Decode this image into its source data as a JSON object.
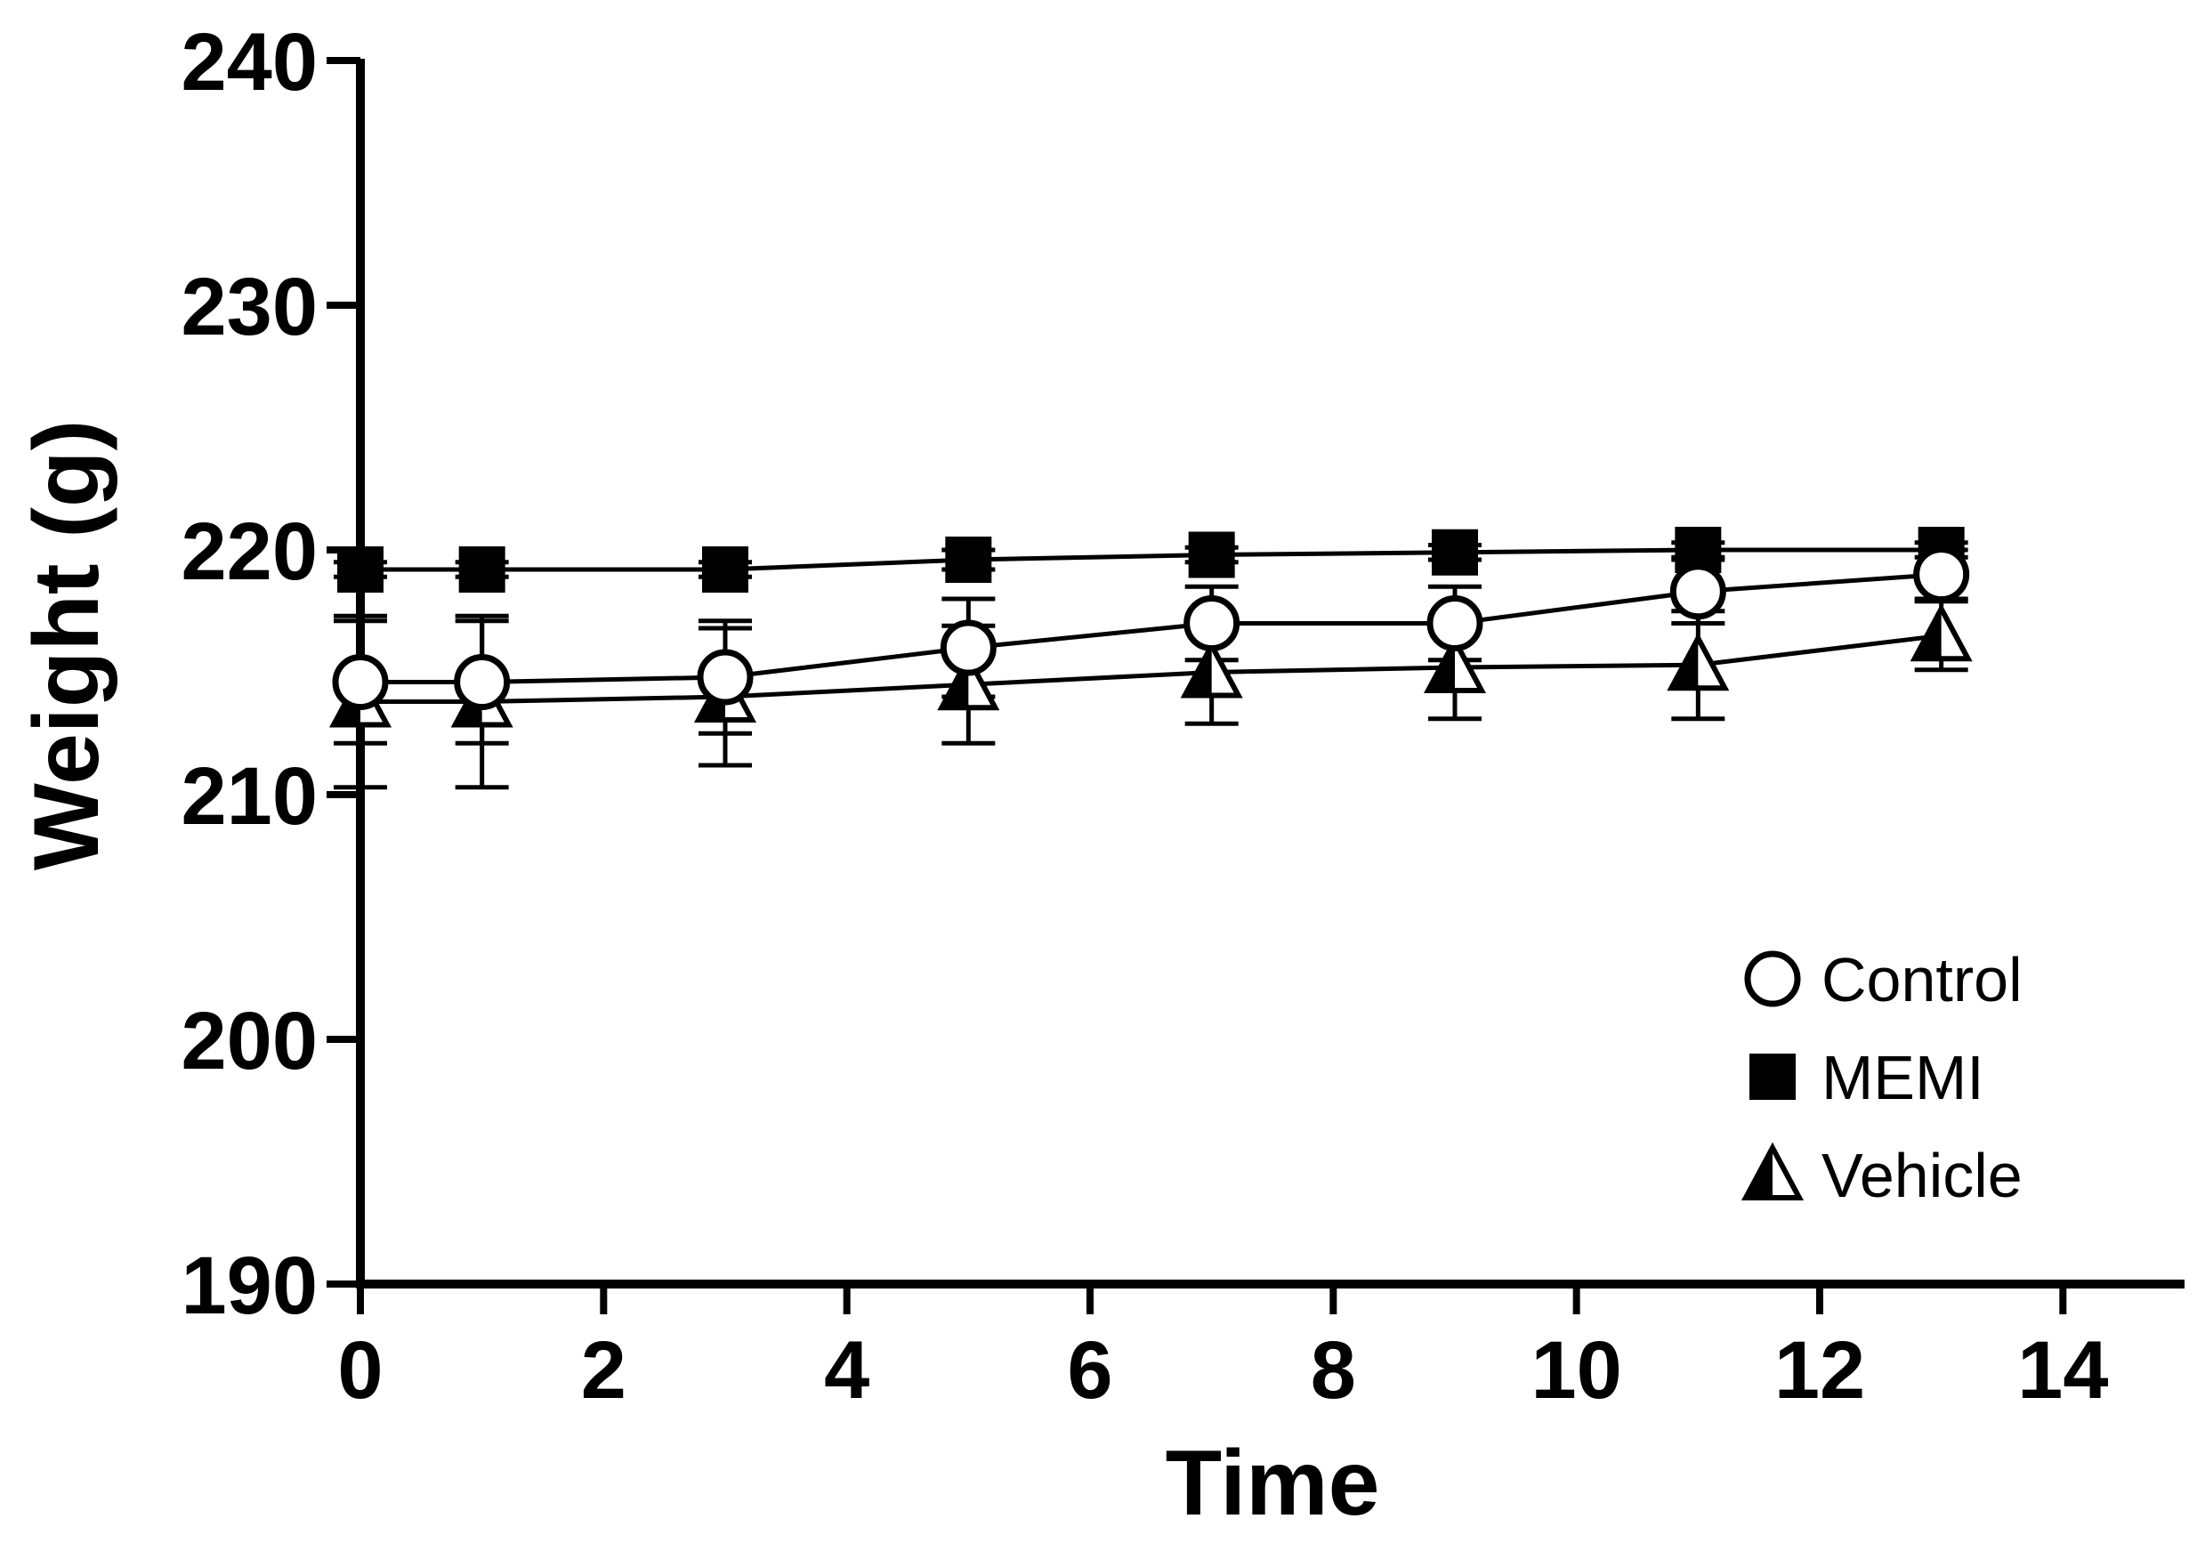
{
  "chart_data": {
    "type": "line",
    "title": "",
    "xlabel": "Time",
    "ylabel": "Weight (g)",
    "xlim": [
      0,
      15
    ],
    "ylim": [
      190,
      240
    ],
    "x_ticks": [
      0,
      2,
      4,
      6,
      8,
      10,
      12,
      14
    ],
    "x_tick_labels": [
      "0",
      "2",
      "4",
      "6",
      "8",
      "10",
      "12",
      "14"
    ],
    "y_ticks": [
      190,
      200,
      210,
      220,
      230,
      240
    ],
    "y_tick_labels": [
      "190",
      "200",
      "210",
      "220",
      "230",
      "240"
    ],
    "grid": false,
    "legend_position": "bottom-right",
    "x": [
      0,
      1,
      3,
      5,
      7,
      9,
      11,
      13
    ],
    "series": [
      {
        "name": "Control",
        "marker": "open-circle",
        "values": [
          214.6,
          214.6,
          214.8,
          216.0,
          217.0,
          217.0,
          218.3,
          219.0
        ],
        "error": [
          2.5,
          2.5,
          2.3,
          2.0,
          1.5,
          1.5,
          1.3,
          1.0
        ]
      },
      {
        "name": "MEMI",
        "marker": "filled-square",
        "values": [
          219.2,
          219.2,
          219.2,
          219.6,
          219.8,
          219.9,
          220.0,
          220.0
        ],
        "error": [
          0.3,
          0.3,
          0.3,
          0.4,
          0.3,
          0.3,
          0.3,
          0.3
        ]
      },
      {
        "name": "Vehicle",
        "marker": "half-filled-triangle",
        "values": [
          213.8,
          213.8,
          214.0,
          214.5,
          215.0,
          215.2,
          215.3,
          216.5
        ],
        "error": [
          3.5,
          3.5,
          2.8,
          2.4,
          2.1,
          2.1,
          2.2,
          1.4
        ]
      }
    ]
  }
}
